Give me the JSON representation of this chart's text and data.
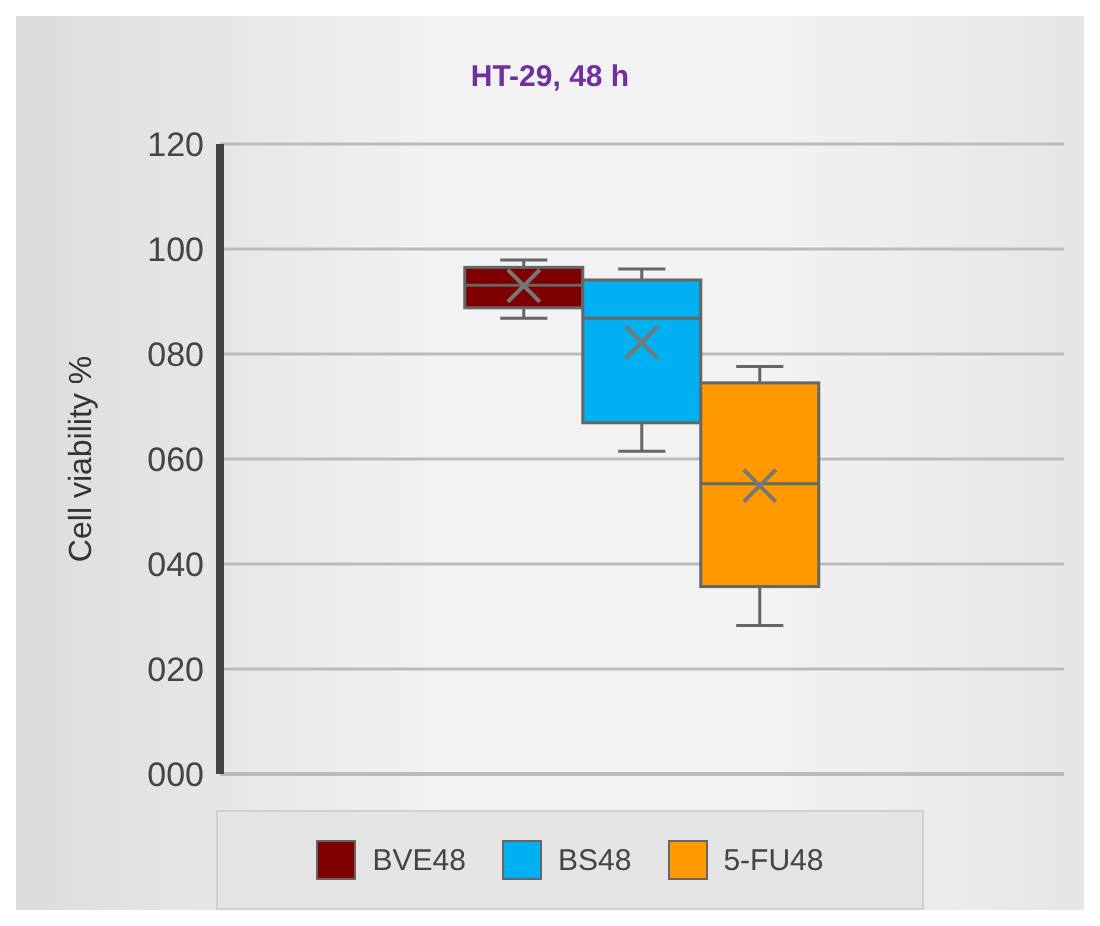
{
  "chart_data": {
    "type": "box",
    "title": "HT-29, 48 h",
    "ylabel": "Cell viability %",
    "categories": [
      null
    ],
    "ylim": [
      0,
      120
    ],
    "yticks": [
      {
        "value": 0,
        "label": "000"
      },
      {
        "value": 20,
        "label": "020"
      },
      {
        "value": 40,
        "label": "040"
      },
      {
        "value": 60,
        "label": "060"
      },
      {
        "value": 80,
        "label": "080"
      },
      {
        "value": 100,
        "label": "100"
      },
      {
        "value": 120,
        "label": "120"
      }
    ],
    "grid": "y",
    "legend": "bottom",
    "marker": "cross",
    "series": [
      {
        "name": "BVE48",
        "color": "#7f0000",
        "boxes": [
          {
            "low": 86.8,
            "q1": 88.8,
            "median": 93.1,
            "q3": 96.5,
            "high": 97.9,
            "mean": 93
          }
        ]
      },
      {
        "name": "BS48",
        "color": "#00b0f0",
        "boxes": [
          {
            "low": 61.5,
            "q1": 66.9,
            "median": 86.8,
            "q3": 94.1,
            "high": 96.2,
            "mean": 82.2
          }
        ]
      },
      {
        "name": "5-FU48",
        "color": "#ff9900",
        "boxes": [
          {
            "low": 28.3,
            "q1": 35.7,
            "median": 55.3,
            "q3": 74.5,
            "high": 77.6,
            "mean": 54.9
          }
        ]
      }
    ]
  }
}
